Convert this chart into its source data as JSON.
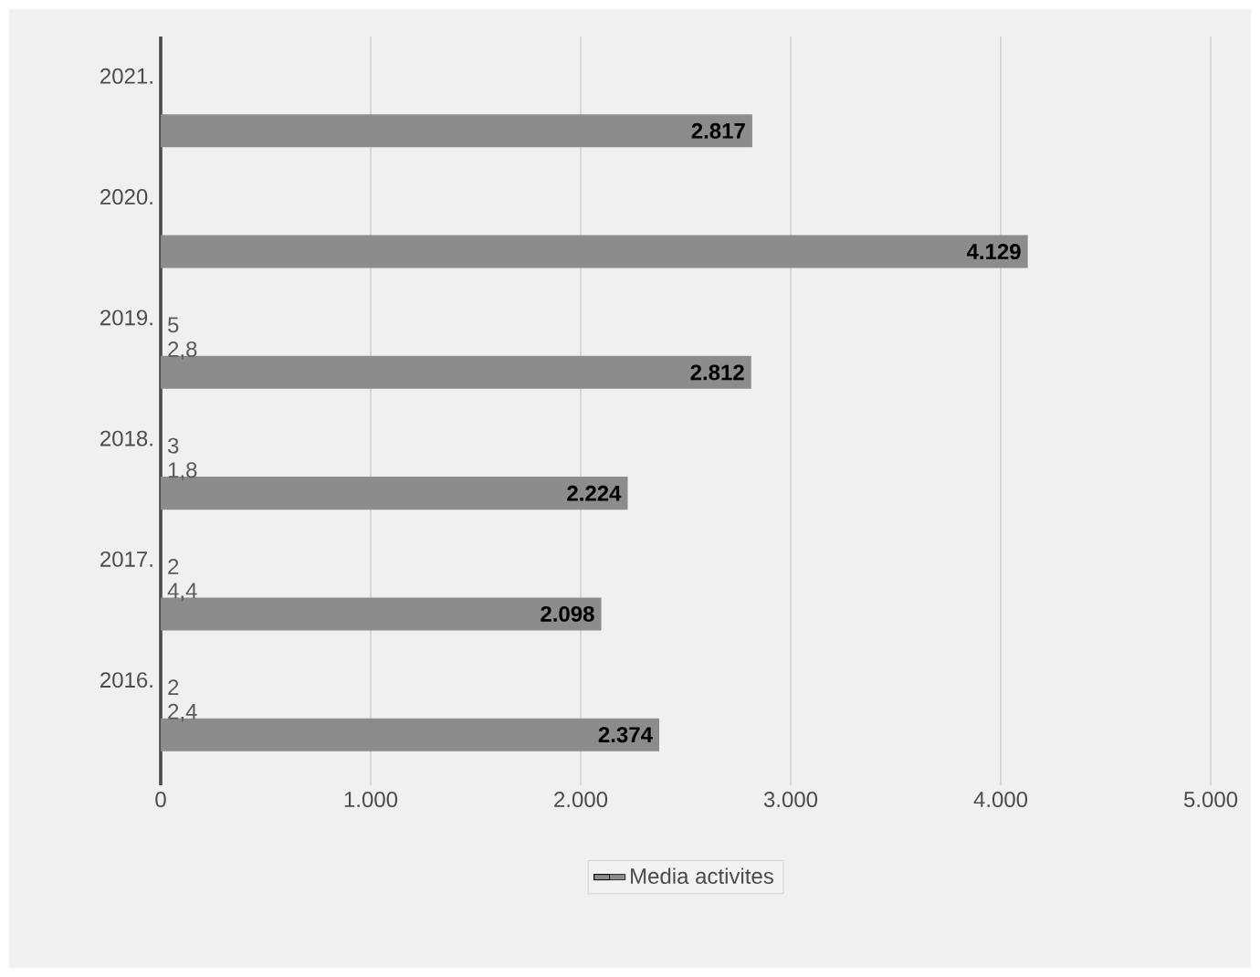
{
  "chart_data": {
    "type": "bar",
    "orientation": "horizontal",
    "categories": [
      "2021.",
      "2020.",
      "2019.",
      "2018.",
      "2017.",
      "2016."
    ],
    "series": [
      {
        "name": "Media activites",
        "color": "#8c8c8c",
        "values": [
          2817,
          4129,
          2812,
          2224,
          2098,
          2374
        ],
        "value_labels": [
          "2.817",
          "4.129",
          "2.812",
          "2.224",
          "2.098",
          "2.374"
        ]
      }
    ],
    "xlim": [
      0,
      5000
    ],
    "xticks": [
      0,
      {
        "value": 1000,
        "label": "1.000"
      },
      {
        "value": 2000,
        "label": "2.000"
      },
      {
        "value": 3000,
        "label": "3.000"
      },
      {
        "value": 4000,
        "label": "4.000"
      },
      {
        "value": 5000,
        "label": "5.000"
      }
    ],
    "grid": "x",
    "legend": "bottom",
    "annotations": [
      "5",
      "2,8",
      "3",
      "1,8",
      "2",
      "4,4",
      "2",
      "2,4"
    ]
  }
}
